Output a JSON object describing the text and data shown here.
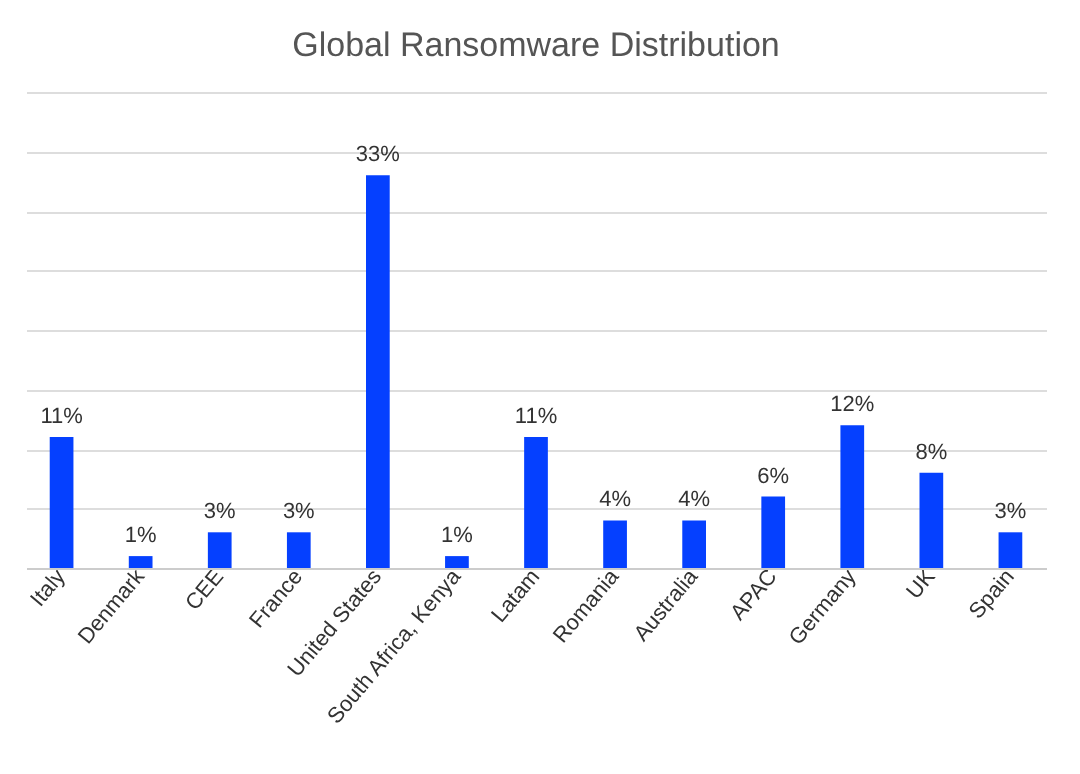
{
  "chart_data": {
    "type": "bar",
    "title": "Global Ransomware Distribution",
    "categories": [
      "Italy",
      "Denmark",
      "CEE",
      "France",
      "United States",
      "South Africa, Kenya",
      "Latam",
      "Romania",
      "Australia",
      "APAC",
      "Germany",
      "UK",
      "Spain"
    ],
    "values": [
      11,
      1,
      3,
      3,
      33,
      1,
      11,
      4,
      4,
      6,
      12,
      8,
      3
    ],
    "value_labels": [
      "11%",
      "1%",
      "3%",
      "3%",
      "33%",
      "1%",
      "11%",
      "4%",
      "4%",
      "6%",
      "12%",
      "8%",
      "3%"
    ],
    "color": "#0540ff",
    "ylim": [
      0,
      40
    ],
    "yticks": [
      {
        "value": 0,
        "label": null
      },
      {
        "value": 5,
        "label": null
      },
      {
        "value": 10,
        "label": null
      },
      {
        "value": 15,
        "label": null
      },
      {
        "value": 20,
        "label": null
      },
      {
        "value": 25,
        "label": null
      },
      {
        "value": 30,
        "label": null
      },
      {
        "value": 35,
        "label": null
      },
      {
        "value": 40,
        "label": null
      }
    ],
    "grid": "y",
    "tick_labels": "x"
  }
}
